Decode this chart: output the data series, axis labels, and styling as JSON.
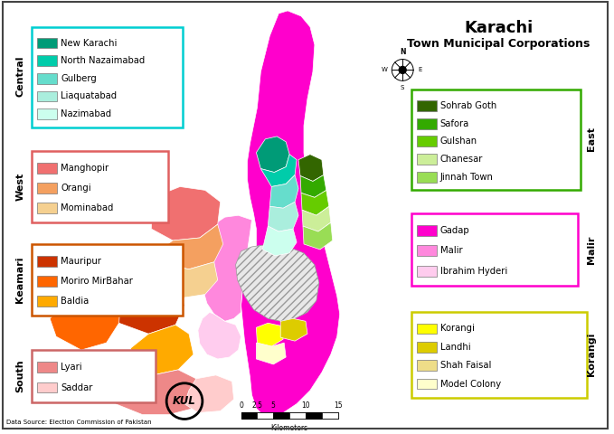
{
  "title_line1": "Karachi",
  "title_line2": "Town Municipal Corporations",
  "background_color": "#f0f0e8",
  "legends": {
    "Central": {
      "border_color": "#00CED1",
      "items": [
        {
          "name": "New Karachi",
          "color": "#009B77"
        },
        {
          "name": "North Nazaimabad",
          "color": "#00CCAA"
        },
        {
          "name": "Gulberg",
          "color": "#66DDCC"
        },
        {
          "name": "Liaquatabad",
          "color": "#AAEEDD"
        },
        {
          "name": "Nazimabad",
          "color": "#CCFFEE"
        }
      ]
    },
    "West": {
      "border_color": "#E06060",
      "items": [
        {
          "name": "Manghopir",
          "color": "#F07070"
        },
        {
          "name": "Orangi",
          "color": "#F4A060"
        },
        {
          "name": "Mominabad",
          "color": "#F5D090"
        }
      ]
    },
    "Keamari": {
      "border_color": "#CC5500",
      "items": [
        {
          "name": "Mauripur",
          "color": "#CC3300"
        },
        {
          "name": "Moriro MirBahar",
          "color": "#FF6600"
        },
        {
          "name": "Baldia",
          "color": "#FFAA00"
        }
      ]
    },
    "South": {
      "border_color": "#CC6666",
      "items": [
        {
          "name": "Lyari",
          "color": "#EE8888"
        },
        {
          "name": "Saddar",
          "color": "#FFCCCC"
        }
      ]
    },
    "East": {
      "border_color": "#33AA00",
      "items": [
        {
          "name": "Sohrab Goth",
          "color": "#336600"
        },
        {
          "name": "Safora",
          "color": "#33AA00"
        },
        {
          "name": "Gulshan",
          "color": "#66CC00"
        },
        {
          "name": "Chanesar",
          "color": "#CCEE99"
        },
        {
          "name": "Jinnah Town",
          "color": "#99DD55"
        }
      ]
    },
    "Malir": {
      "border_color": "#FF00CC",
      "items": [
        {
          "name": "Gadap",
          "color": "#FF00CC"
        },
        {
          "name": "Malir",
          "color": "#FF88DD"
        },
        {
          "name": "Ibrahim Hyderi",
          "color": "#FFCCEE"
        }
      ]
    },
    "Korangi": {
      "border_color": "#CCCC00",
      "items": [
        {
          "name": "Korangi",
          "color": "#FFFF00"
        },
        {
          "name": "Landhi",
          "color": "#DDCC00"
        },
        {
          "name": "Shah Faisal",
          "color": "#EEDD88"
        },
        {
          "name": "Model Colony",
          "color": "#FFFFCC"
        }
      ]
    }
  },
  "source_text": "Data Source: Election Commission of Pakistan"
}
